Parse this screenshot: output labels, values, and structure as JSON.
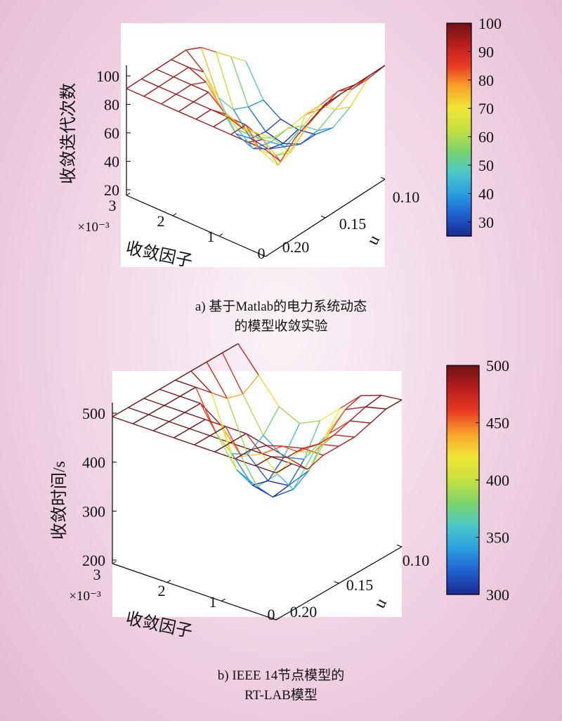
{
  "colormap": [
    "#1a2a8c",
    "#1f5fd0",
    "#2a9fe0",
    "#4cc8c8",
    "#7bd46a",
    "#c6e040",
    "#f1e636",
    "#f7a528",
    "#ea3a22",
    "#b81e1e",
    "#6e1414"
  ],
  "chart_data": [
    {
      "type": "surface",
      "panel": "a",
      "zlabel": "收敛迭代次数",
      "xlabel": "收敛因子",
      "xscale_note": "×10⁻³",
      "ylabel": "u",
      "xticks": [
        "3",
        "2",
        "1",
        "0"
      ],
      "yticks": [
        "0.10",
        "0.15",
        "0.20"
      ],
      "zticks": [
        "100",
        "80",
        "60",
        "40",
        "20"
      ],
      "zlim": [
        20,
        100
      ],
      "colorbar_ticks": [
        "100",
        "90",
        "80",
        "70",
        "60",
        "50",
        "40",
        "30"
      ],
      "colorbar_range": [
        25,
        100
      ],
      "grid_shape": [
        9,
        9
      ],
      "z": [
        [
          95,
          95,
          95,
          95,
          95,
          95,
          95,
          95,
          95
        ],
        [
          95,
          95,
          95,
          95,
          95,
          95,
          95,
          90,
          80
        ],
        [
          95,
          95,
          95,
          95,
          85,
          80,
          70,
          65,
          90
        ],
        [
          95,
          95,
          90,
          75,
          70,
          70,
          60,
          70,
          95
        ],
        [
          95,
          85,
          65,
          55,
          55,
          60,
          55,
          80,
          100
        ],
        [
          90,
          60,
          40,
          35,
          45,
          60,
          75,
          85,
          100
        ],
        [
          80,
          45,
          30,
          28,
          35,
          55,
          75,
          90,
          100
        ],
        [
          70,
          40,
          28,
          25,
          30,
          45,
          65,
          85,
          100
        ],
        [
          60,
          38,
          30,
          28,
          30,
          40,
          60,
          85,
          100
        ]
      ],
      "caption": [
        "a) 基于Matlab的电力系统动态",
        "的模型收敛实验"
      ]
    },
    {
      "type": "surface",
      "panel": "b",
      "zlabel": "收敛时间/s",
      "xlabel": "收敛因子",
      "xscale_note": "×10⁻³",
      "ylabel": "u",
      "xticks": [
        "3",
        "2",
        "1",
        "0"
      ],
      "yticks": [
        "0.10",
        "0.15",
        "0.20"
      ],
      "zticks": [
        "500",
        "400",
        "300",
        "200"
      ],
      "zlim": [
        200,
        500
      ],
      "colorbar_ticks": [
        "500",
        "450",
        "400",
        "350",
        "300"
      ],
      "colorbar_range": [
        300,
        500
      ],
      "grid_shape": [
        9,
        9
      ],
      "z": [
        [
          500,
          500,
          500,
          500,
          500,
          500,
          500,
          500,
          500
        ],
        [
          500,
          500,
          500,
          500,
          500,
          500,
          500,
          500,
          500
        ],
        [
          500,
          500,
          500,
          500,
          500,
          500,
          490,
          480,
          470
        ],
        [
          500,
          500,
          500,
          470,
          420,
          440,
          470,
          480,
          480
        ],
        [
          500,
          500,
          420,
          360,
          340,
          380,
          440,
          470,
          480
        ],
        [
          500,
          470,
          360,
          310,
          300,
          330,
          420,
          470,
          480
        ],
        [
          500,
          440,
          340,
          300,
          305,
          350,
          440,
          480,
          490
        ],
        [
          500,
          430,
          360,
          330,
          340,
          400,
          470,
          490,
          500
        ],
        [
          500,
          450,
          400,
          380,
          400,
          440,
          480,
          495,
          500
        ]
      ],
      "caption": [
        "b) IEEE 14节点模型的",
        "RT-LAB模型"
      ]
    }
  ]
}
